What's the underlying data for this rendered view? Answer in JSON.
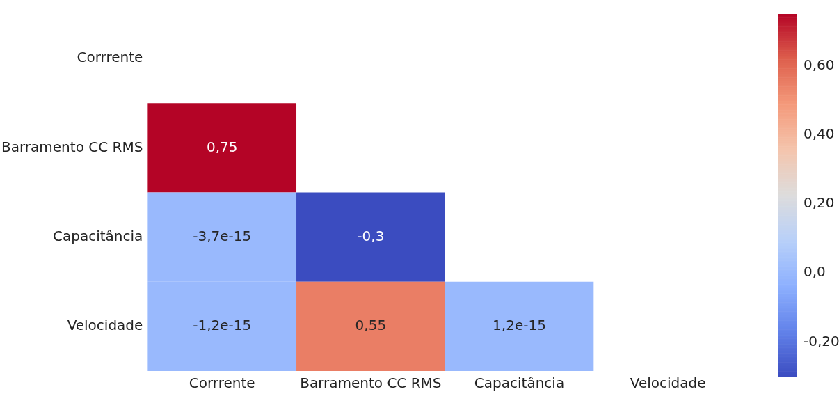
{
  "chart_data": {
    "type": "heatmap",
    "categories": [
      "Corrrente",
      "Barramento CC RMS",
      "Capacitância",
      "Velocidade"
    ],
    "y_categories": [
      "Corrrente",
      "Barramento CC RMS",
      "Capacitância",
      "Velocidade"
    ],
    "cells": [
      [
        null,
        null,
        null,
        null
      ],
      [
        0.75,
        null,
        null,
        null
      ],
      [
        -3.7e-15,
        -0.3,
        null,
        null
      ],
      [
        -1.2e-15,
        0.55,
        1.2e-15,
        null
      ]
    ],
    "cell_labels": [
      [
        null,
        null,
        null,
        null
      ],
      [
        "0,75",
        null,
        null,
        null
      ],
      [
        "-3,7e-15",
        "-0,3",
        null,
        null
      ],
      [
        "-1,2e-15",
        "0,55",
        "1,2e-15",
        null
      ]
    ],
    "clim": [
      -0.3,
      0.75
    ],
    "cticks": [
      {
        "value": -0.2,
        "label": "-0,20"
      },
      {
        "value": 0,
        "label": "0,0"
      },
      {
        "value": 0.2,
        "label": "0,20"
      },
      {
        "value": 0.4,
        "label": "0,40"
      },
      {
        "value": 0.6,
        "label": "0,60"
      }
    ]
  }
}
